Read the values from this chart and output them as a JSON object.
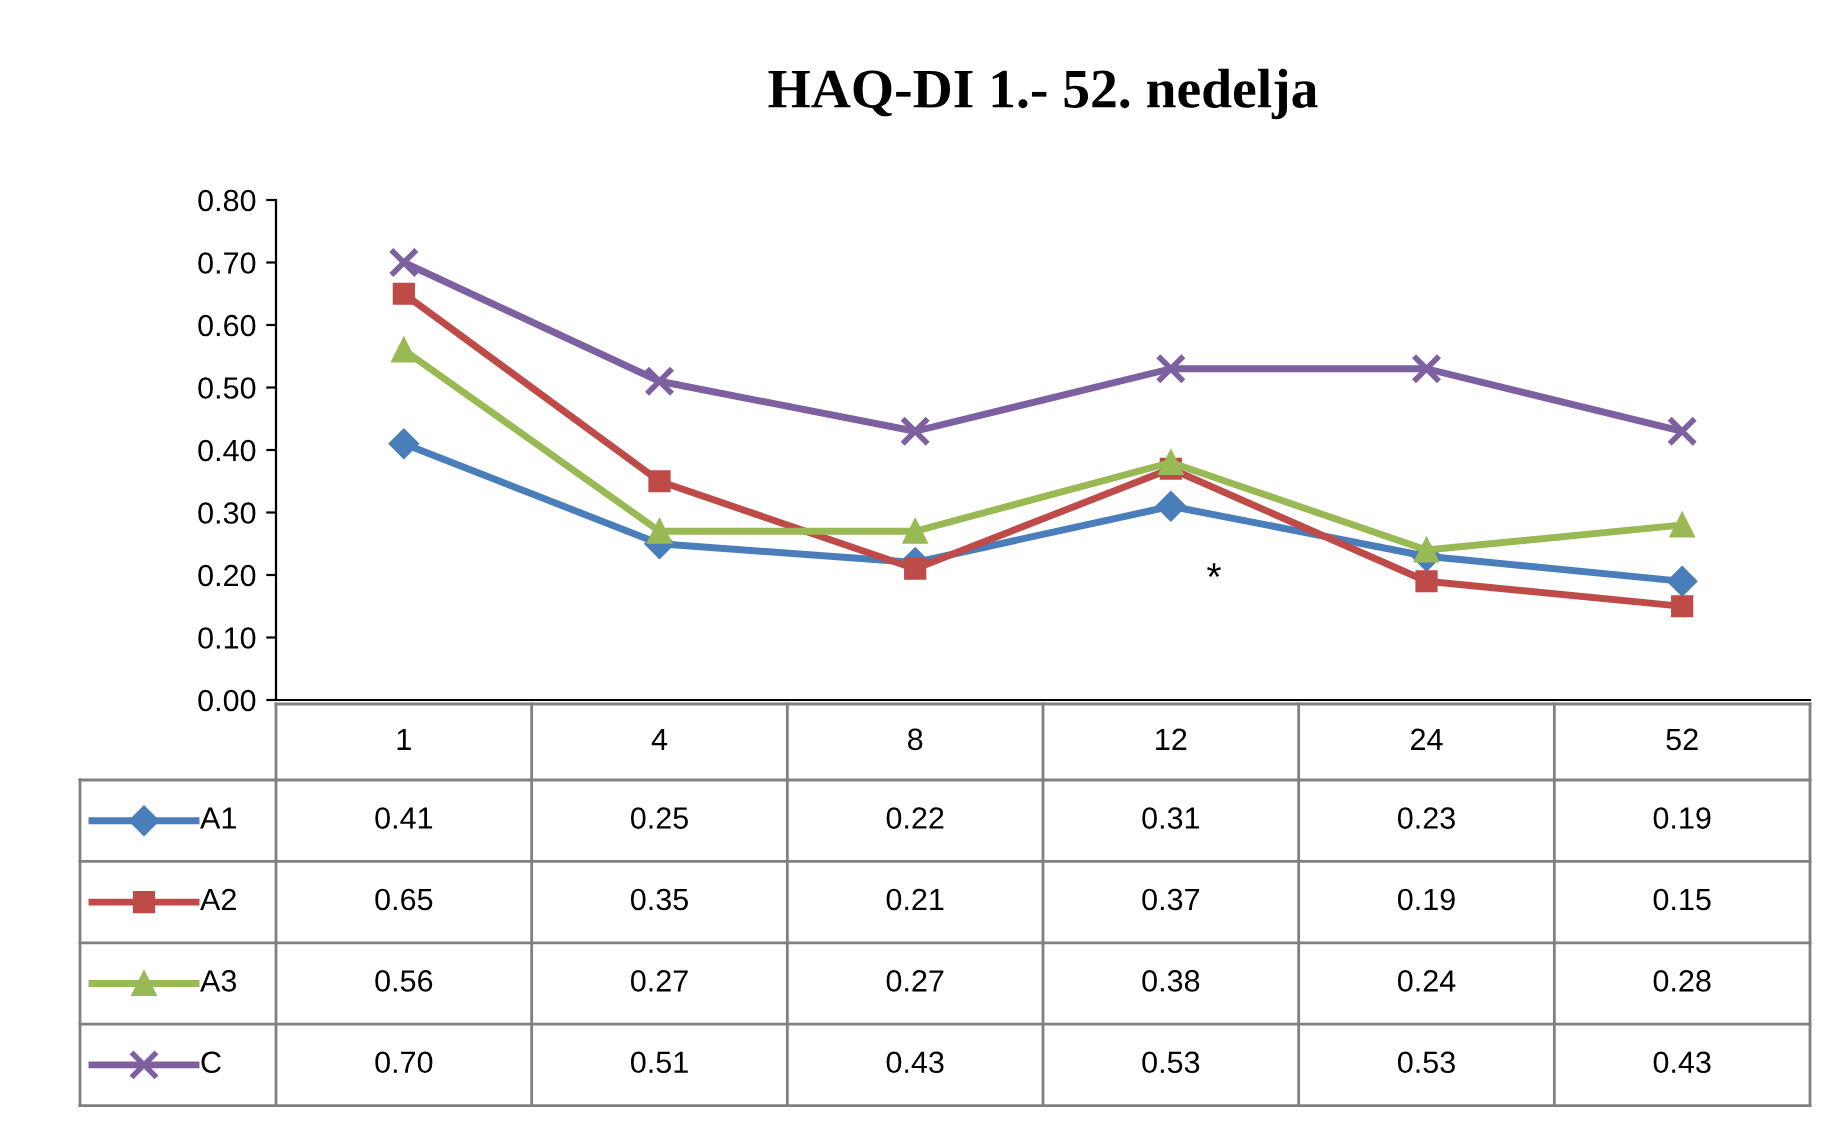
{
  "chart_data": {
    "type": "line",
    "title": "HAQ-DI 1.- 52. nedelja",
    "categories": [
      "1",
      "4",
      "8",
      "12",
      "24",
      "52"
    ],
    "ylim": [
      0,
      0.8
    ],
    "yticks": [
      {
        "value": 0,
        "label": "0.00"
      },
      {
        "value": 0.1,
        "label": "0.10"
      },
      {
        "value": 0.2,
        "label": "0.20"
      },
      {
        "value": 0.3,
        "label": "0.30"
      },
      {
        "value": 0.4,
        "label": "0.40"
      },
      {
        "value": 0.5,
        "label": "0.50"
      },
      {
        "value": 0.6,
        "label": "0.60"
      },
      {
        "value": 0.7,
        "label": "0.70"
      },
      {
        "value": 0.8,
        "label": "0.80"
      }
    ],
    "grid": false,
    "series": [
      {
        "name": "A1",
        "color": "#4a7ebb",
        "marker": "diamond",
        "values": [
          0.41,
          0.25,
          0.22,
          0.31,
          0.23,
          0.19
        ],
        "value_labels": [
          "0.41",
          "0.25",
          "0.22",
          "0.31",
          "0.23",
          "0.19"
        ]
      },
      {
        "name": "A2",
        "color": "#be4b48",
        "marker": "square",
        "values": [
          0.65,
          0.35,
          0.21,
          0.37,
          0.19,
          0.15
        ],
        "value_labels": [
          "0.65",
          "0.35",
          "0.21",
          "0.37",
          "0.19",
          "0.15"
        ]
      },
      {
        "name": "A3",
        "color": "#98b954",
        "marker": "triangle",
        "values": [
          0.56,
          0.27,
          0.27,
          0.38,
          0.24,
          0.28
        ],
        "value_labels": [
          "0.56",
          "0.27",
          "0.27",
          "0.38",
          "0.24",
          "0.28"
        ]
      },
      {
        "name": "C",
        "color": "#7d60a0",
        "marker": "cross",
        "values": [
          0.7,
          0.51,
          0.43,
          0.53,
          0.53,
          0.43
        ],
        "value_labels": [
          "0.70",
          "0.51",
          "0.43",
          "0.53",
          "0.53",
          "0.43"
        ]
      }
    ],
    "legend": "bottom left",
    "annotations": [
      "*"
    ]
  }
}
